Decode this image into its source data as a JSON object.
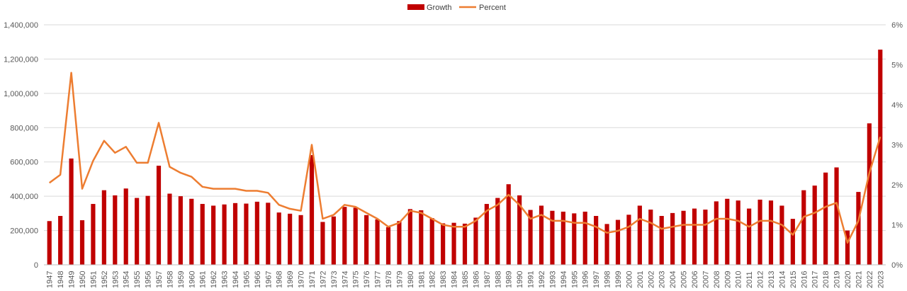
{
  "chart_data": {
    "type": "bar",
    "title": "",
    "xlabel": "",
    "ylabel": "",
    "categories": [
      "1947",
      "1948",
      "1949",
      "1950",
      "1951",
      "1952",
      "1953",
      "1954",
      "1955",
      "1956",
      "1957",
      "1958",
      "1959",
      "1960",
      "1961",
      "1962",
      "1963",
      "1964",
      "1965",
      "1966",
      "1967",
      "1968",
      "1969",
      "1970",
      "1971",
      "1972",
      "1973",
      "1974",
      "1975",
      "1976",
      "1977",
      "1978",
      "1979",
      "1980",
      "1981",
      "1982",
      "1983",
      "1984",
      "1985",
      "1986",
      "1987",
      "1988",
      "1989",
      "1990",
      "1991",
      "1992",
      "1993",
      "1994",
      "1995",
      "1996",
      "1997",
      "1998",
      "1999",
      "2000",
      "2001",
      "2002",
      "2003",
      "2004",
      "2005",
      "2006",
      "2007",
      "2008",
      "2009",
      "2010",
      "2011",
      "2012",
      "2013",
      "2014",
      "2015",
      "2016",
      "2017",
      "2018",
      "2019",
      "2020",
      "2021",
      "2022",
      "2023"
    ],
    "series": [
      {
        "name": "Growth",
        "type": "bar",
        "axis": "left",
        "color": "#C00000",
        "values": [
          255000,
          285000,
          620000,
          260000,
          355000,
          435000,
          405000,
          445000,
          390000,
          402000,
          578000,
          415000,
          400000,
          385000,
          355000,
          345000,
          352000,
          360000,
          357000,
          368000,
          362000,
          305000,
          298000,
          290000,
          640000,
          250000,
          282000,
          338000,
          333000,
          290000,
          265000,
          220000,
          255000,
          325000,
          318000,
          272000,
          242000,
          245000,
          240000,
          275000,
          355000,
          390000,
          470000,
          405000,
          320000,
          345000,
          315000,
          310000,
          300000,
          310000,
          285000,
          238000,
          262000,
          292000,
          345000,
          322000,
          285000,
          302000,
          315000,
          328000,
          322000,
          370000,
          385000,
          375000,
          328000,
          380000,
          375000,
          345000,
          268000,
          435000,
          462000,
          538000,
          568000,
          200000,
          425000,
          825000,
          1255000
        ]
      },
      {
        "name": "Percent",
        "type": "line",
        "axis": "right",
        "color": "#ED7D31",
        "values": [
          2.05,
          2.25,
          4.8,
          1.9,
          2.6,
          3.1,
          2.8,
          2.95,
          2.55,
          2.55,
          3.55,
          2.45,
          2.3,
          2.2,
          1.95,
          1.9,
          1.9,
          1.9,
          1.85,
          1.85,
          1.8,
          1.5,
          1.4,
          1.35,
          3.0,
          1.15,
          1.25,
          1.5,
          1.45,
          1.3,
          1.15,
          0.95,
          1.05,
          1.35,
          1.3,
          1.15,
          1.0,
          0.95,
          0.95,
          1.1,
          1.35,
          1.5,
          1.75,
          1.5,
          1.15,
          1.25,
          1.1,
          1.1,
          1.05,
          1.05,
          0.95,
          0.8,
          0.85,
          0.95,
          1.15,
          1.05,
          0.9,
          0.95,
          1.0,
          1.0,
          1.0,
          1.15,
          1.15,
          1.1,
          0.95,
          1.1,
          1.1,
          1.0,
          0.75,
          1.2,
          1.3,
          1.45,
          1.55,
          0.55,
          1.1,
          2.3,
          3.2
        ]
      }
    ],
    "y_left": {
      "min": 0,
      "max": 1400000,
      "step": 200000,
      "tick_labels": [
        "0",
        "200,000",
        "400,000",
        "600,000",
        "800,000",
        "1,000,000",
        "1,200,000",
        "1,400,000"
      ]
    },
    "y_right": {
      "min": 0,
      "max": 6,
      "step": 1,
      "tick_labels": [
        "0%",
        "1%",
        "2%",
        "3%",
        "4%",
        "5%",
        "6%"
      ]
    },
    "grid": true,
    "gridline_color": "#D9D9D9",
    "legend": {
      "position": "top-center",
      "entries": [
        "Growth",
        "Percent"
      ]
    }
  }
}
